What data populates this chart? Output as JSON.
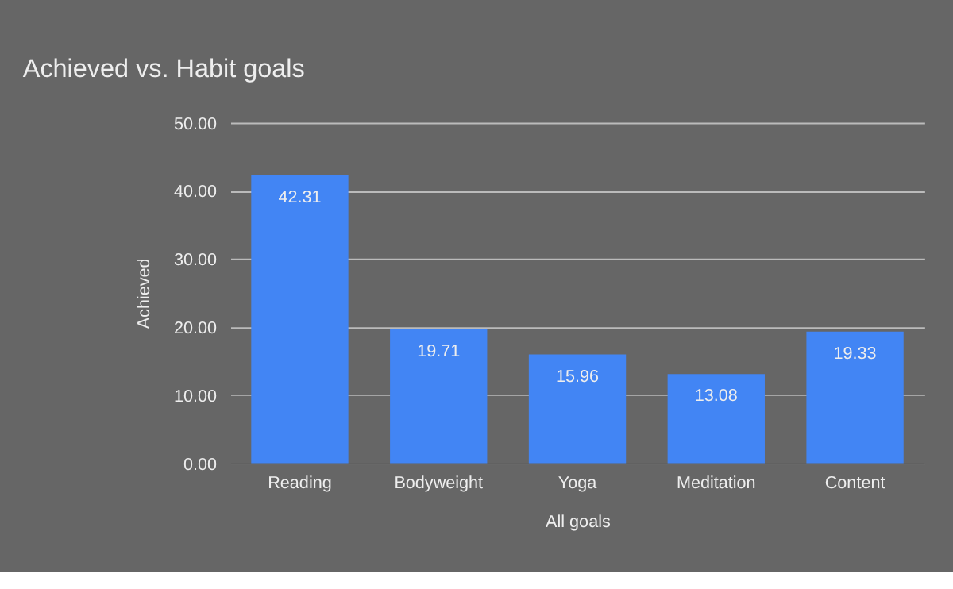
{
  "chart_data": {
    "type": "bar",
    "title": "Achieved vs. Habit goals",
    "xlabel": "All goals",
    "ylabel": "Achieved",
    "categories": [
      "Reading",
      "Bodyweight",
      "Yoga",
      "Meditation",
      "Content"
    ],
    "values": [
      42.31,
      19.71,
      15.96,
      13.08,
      19.33
    ],
    "color": "#4285f4",
    "ylim": [
      0,
      50
    ],
    "yticks": [
      {
        "value": 0,
        "label": "0.00"
      },
      {
        "value": 10,
        "label": "10.00"
      },
      {
        "value": 20,
        "label": "20.00"
      },
      {
        "value": 30,
        "label": "30.00"
      },
      {
        "value": 40,
        "label": "40.00"
      },
      {
        "value": 50,
        "label": "50.00"
      }
    ],
    "grid": "y",
    "data_labels": true
  }
}
